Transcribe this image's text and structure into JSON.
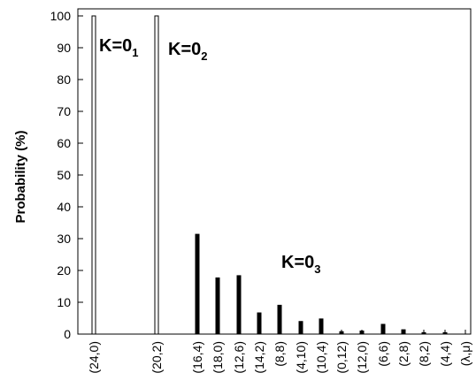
{
  "chart_data": {
    "type": "bar",
    "ylabel": "Probability (%)",
    "ylim": [
      0,
      100
    ],
    "yticks": [
      0,
      10,
      20,
      30,
      40,
      50,
      60,
      70,
      80,
      90,
      100
    ],
    "xticks_order": [
      "(24,0)",
      "(20,2)",
      "(16,4)",
      "(18,0)",
      "(12,6)",
      "(14,2)",
      "(8,8)",
      "(4,10)",
      "(10,4)",
      "(0,12)",
      "(12,0)",
      "(6,6)",
      "(2,8)",
      "(8,2)",
      "(4,4)",
      "(λ,μ)"
    ],
    "series": [
      {
        "label": "K=0",
        "subscript": "1",
        "style": "open",
        "categories": [
          "(24,0)"
        ],
        "values": [
          100
        ]
      },
      {
        "label": "K=0",
        "subscript": "2",
        "style": "open",
        "categories": [
          "(20,2)"
        ],
        "values": [
          100
        ]
      },
      {
        "label": "K=0",
        "subscript": "3",
        "style": "filled",
        "categories": [
          "(16,4)",
          "(18,0)",
          "(12,6)",
          "(14,2)",
          "(8,8)",
          "(4,10)",
          "(10,4)",
          "(0,12)",
          "(12,0)",
          "(6,6)",
          "(2,8)",
          "(8,2)",
          "(4,4)"
        ],
        "values": [
          31.5,
          17.8,
          18.5,
          6.8,
          9.2,
          4.1,
          4.9,
          0.9,
          1.1,
          3.2,
          1.5,
          0.6,
          0.6
        ]
      }
    ],
    "grid": false,
    "legend": "none"
  }
}
